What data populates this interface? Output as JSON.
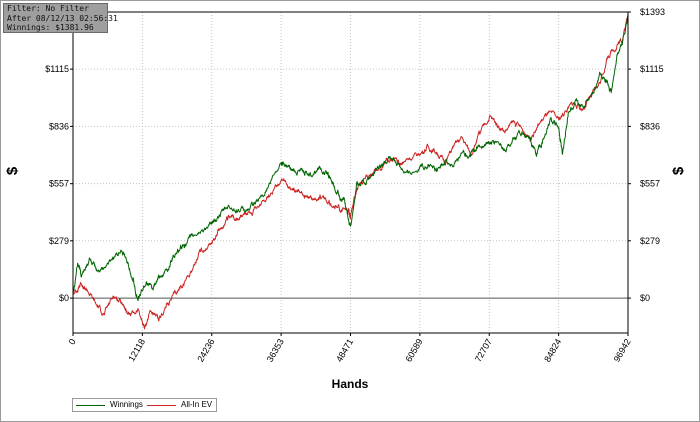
{
  "info_box": {
    "filter": "Filter: No Filter",
    "after": "After 08/12/13 02:56:31",
    "winnings": "Winnings: $1381.96"
  },
  "chart_data": {
    "type": "line",
    "title": "",
    "xlabel": "Hands",
    "ylabel": "$",
    "xlim": [
      0,
      96942
    ],
    "ylim": [
      -170,
      1393
    ],
    "x_ticks": [
      0,
      12118,
      24236,
      36353,
      48471,
      60589,
      72707,
      84824,
      96942
    ],
    "x_tick_labels": [
      "0",
      "12118",
      "24236",
      "36353",
      "48471",
      "60589",
      "72707",
      "84824",
      "96942"
    ],
    "y_ticks": [
      0,
      279,
      557,
      836,
      1115,
      1393
    ],
    "y_tick_labels": [
      "$0",
      "$279",
      "$557",
      "$836",
      "$1115",
      "$1393"
    ],
    "grid": true,
    "legend_position": "bottom-left",
    "series": [
      {
        "name": "Winnings",
        "color": "#006400",
        "x": [
          0,
          800,
          1500,
          3000,
          4200,
          5500,
          7000,
          8500,
          9500,
          10500,
          11000,
          11800,
          12800,
          14000,
          15000,
          16500,
          17500,
          18500,
          19500,
          21000,
          22500,
          24236,
          25500,
          27000,
          28500,
          30000,
          31500,
          33000,
          34500,
          36353,
          37200,
          38500,
          40000,
          41500,
          43000,
          44500,
          45500,
          46500,
          47500,
          48471,
          49500,
          51000,
          52500,
          54000,
          55500,
          57000,
          58500,
          60589,
          62000,
          63500,
          65000,
          66500,
          68000,
          69000,
          70000,
          71000,
          72707,
          74000,
          75500,
          77000,
          78500,
          80000,
          81000,
          82000,
          83500,
          84824,
          85500,
          86500,
          88000,
          89500,
          91000,
          92000,
          93000,
          94000,
          95000,
          96000,
          96942
        ],
        "y": [
          30,
          170,
          110,
          190,
          130,
          150,
          200,
          230,
          170,
          90,
          10,
          20,
          80,
          40,
          100,
          130,
          210,
          230,
          260,
          300,
          330,
          360,
          400,
          440,
          430,
          420,
          450,
          500,
          560,
          660,
          650,
          620,
          630,
          600,
          640,
          600,
          550,
          500,
          460,
          350,
          550,
          560,
          600,
          640,
          680,
          650,
          610,
          640,
          650,
          620,
          670,
          640,
          710,
          680,
          720,
          740,
          750,
          760,
          720,
          780,
          800,
          760,
          700,
          760,
          880,
          830,
          700,
          900,
          960,
          940,
          1000,
          1100,
          1050,
          1000,
          1180,
          1250,
          1382
        ]
      },
      {
        "name": "All-In EV",
        "color": "#cc2222",
        "x": [
          0,
          1200,
          2500,
          4000,
          5500,
          7000,
          8500,
          10000,
          11500,
          12500,
          13500,
          15000,
          16500,
          18000,
          19500,
          21000,
          22500,
          24236,
          25500,
          27000,
          28500,
          30000,
          31500,
          33000,
          34500,
          36353,
          37500,
          39000,
          40500,
          42000,
          43500,
          45000,
          46500,
          48000,
          48471,
          49500,
          51000,
          52500,
          54000,
          55500,
          57000,
          58500,
          60589,
          62000,
          63500,
          65000,
          66500,
          68000,
          69500,
          71000,
          72707,
          74000,
          75500,
          77000,
          78500,
          80000,
          81500,
          83000,
          84824,
          86000,
          87500,
          89000,
          90500,
          92000,
          93500,
          95000,
          96000,
          96942
        ],
        "y": [
          20,
          60,
          40,
          -30,
          -80,
          10,
          -20,
          -80,
          -60,
          -150,
          -60,
          -110,
          -30,
          20,
          80,
          150,
          230,
          270,
          330,
          380,
          390,
          410,
          430,
          470,
          510,
          570,
          540,
          520,
          500,
          480,
          490,
          460,
          440,
          420,
          400,
          520,
          580,
          610,
          640,
          680,
          650,
          680,
          700,
          740,
          710,
          660,
          740,
          780,
          700,
          800,
          880,
          850,
          810,
          860,
          820,
          780,
          850,
          900,
          870,
          910,
          950,
          920,
          980,
          1050,
          1180,
          1230,
          1260,
          1382
        ]
      }
    ]
  },
  "legend": {
    "winnings": "Winnings",
    "allin_ev": "All-In EV"
  }
}
